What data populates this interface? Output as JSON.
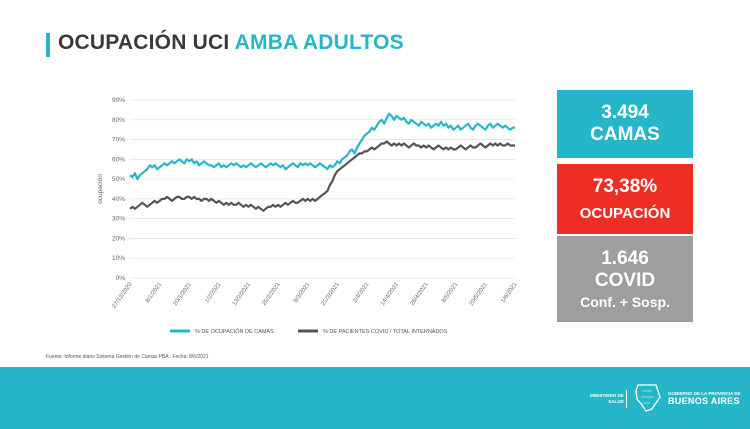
{
  "header": {
    "title_part1": "OCUPACIÓN UCI",
    "title_part2": "AMBA ADULTOS"
  },
  "stats": {
    "beds_value": "3.494",
    "beds_label": "CAMAS",
    "occupancy_value": "73,38%",
    "occupancy_label": "OCUPACIÓN",
    "covid_value": "1.646",
    "covid_label": "COVID",
    "covid_sublabel": "Conf. + Sosp."
  },
  "source_note": "Fuente: Informe diario Sistema Gestión de Camas PBA . Fecha: 8/6/2021",
  "footer": {
    "ministry_line1": "MINISTERIO DE",
    "ministry_line2": "SALUD",
    "gov_line1": "GOBIERNO DE LA PROVINCIA DE",
    "gov_line2": "BUENOS AIRES"
  },
  "colors": {
    "accent": "#25b6c9",
    "occupancy": "#ee2e24",
    "covid": "#9e9e9e",
    "covid_series": "#555555"
  },
  "chart_data": {
    "type": "line",
    "ylabel": "ocupación",
    "ylim": [
      0,
      90
    ],
    "yticks": [
      0,
      10,
      20,
      30,
      40,
      50,
      60,
      70,
      80,
      90
    ],
    "ytick_labels": [
      "0%",
      "10%",
      "20%",
      "30%",
      "40%",
      "50%",
      "60%",
      "70%",
      "80%",
      "90%"
    ],
    "grid": true,
    "legend_placement": "bottom",
    "x_tick_labels": [
      "27/12/2020",
      "8/1/2021",
      "20/1/2021",
      "1/2/2021",
      "13/2/2021",
      "25/2/2021",
      "9/3/2021",
      "21/3/2021",
      "2/4/2021",
      "14/4/2021",
      "26/4/2021",
      "8/5/2021",
      "20/5/2021",
      "1/6/2021"
    ],
    "x_points_per_tick": 12,
    "series": [
      {
        "name": "% DE OCUPACIÓN DE CAMAS",
        "color": "#25b6c9",
        "values": [
          52,
          51,
          53,
          50,
          52,
          53,
          54,
          55,
          57,
          56,
          57,
          55,
          56,
          57,
          58,
          57,
          58,
          59,
          58,
          59,
          60,
          59,
          58,
          60,
          59,
          60,
          58,
          59,
          57,
          58,
          59,
          58,
          57,
          57,
          56,
          57,
          58,
          56,
          57,
          56,
          57,
          58,
          57,
          58,
          57,
          56,
          57,
          56,
          57,
          58,
          57,
          56,
          57,
          58,
          57,
          56,
          57,
          58,
          57,
          58,
          57,
          56,
          57,
          55,
          56,
          57,
          58,
          57,
          56,
          58,
          57,
          58,
          57,
          58,
          57,
          56,
          57,
          58,
          57,
          56,
          55,
          57,
          56,
          57,
          59,
          58,
          60,
          61,
          62,
          64,
          65,
          63,
          66,
          68,
          70,
          72,
          73,
          74,
          76,
          75,
          77,
          79,
          80,
          78,
          81,
          83,
          82,
          80,
          82,
          81,
          80,
          81,
          79,
          78,
          80,
          79,
          78,
          77,
          79,
          78,
          77,
          78,
          76,
          77,
          78,
          77,
          79,
          77,
          78,
          76,
          77,
          75,
          76,
          77,
          75,
          76,
          77,
          78,
          76,
          75,
          77,
          78,
          77,
          76,
          75,
          77,
          78,
          76,
          77,
          78,
          77,
          76,
          77,
          76,
          75,
          76,
          76
        ]
      },
      {
        "name": "% DE PACIENTES COVID / TOTAL INTERNADOS",
        "color": "#555555",
        "values": [
          35,
          36,
          35,
          36,
          37,
          38,
          37,
          36,
          37,
          38,
          39,
          38,
          39,
          40,
          40,
          41,
          40,
          39,
          40,
          41,
          41,
          40,
          40,
          41,
          41,
          40,
          41,
          40,
          40,
          39,
          40,
          40,
          39,
          40,
          39,
          38,
          39,
          38,
          37,
          38,
          37,
          38,
          37,
          37,
          38,
          37,
          36,
          37,
          36,
          37,
          36,
          35,
          36,
          35,
          34,
          35,
          36,
          36,
          37,
          36,
          37,
          36,
          37,
          38,
          37,
          38,
          39,
          38,
          38,
          39,
          40,
          39,
          40,
          39,
          40,
          39,
          40,
          41,
          42,
          43,
          44,
          47,
          49,
          52,
          54,
          55,
          56,
          57,
          58,
          59,
          60,
          61,
          62,
          63,
          63,
          64,
          64,
          65,
          66,
          65,
          66,
          67,
          68,
          68,
          69,
          68,
          67,
          68,
          67,
          68,
          67,
          68,
          67,
          66,
          67,
          68,
          67,
          67,
          66,
          67,
          66,
          67,
          66,
          65,
          66,
          67,
          66,
          65,
          66,
          65,
          66,
          65,
          65,
          66,
          67,
          66,
          65,
          66,
          67,
          66,
          66,
          67,
          68,
          67,
          66,
          67,
          68,
          67,
          68,
          67,
          68,
          67,
          67,
          68,
          67,
          67,
          67
        ]
      }
    ]
  }
}
